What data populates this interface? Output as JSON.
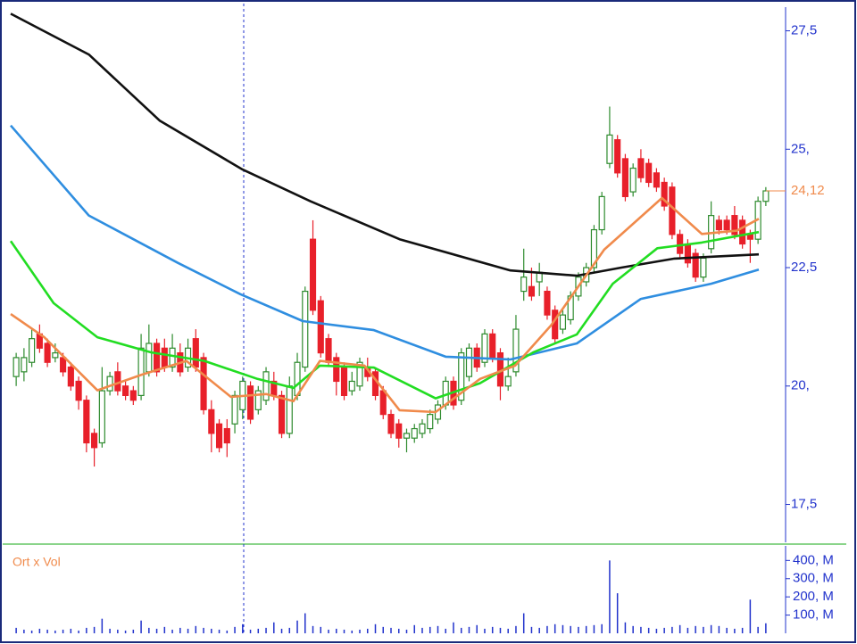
{
  "chart_data": [
    {
      "type": "candlestick",
      "xlim": [
        -0.7,
        98.3
      ],
      "ylim": [
        16.7,
        28.0
      ],
      "yticks": [
        {
          "value": 27.5,
          "label": "27,5"
        },
        {
          "value": 25,
          "label": "25,"
        },
        {
          "value": 22.5,
          "label": "22,5"
        },
        {
          "value": 20,
          "label": "20,"
        },
        {
          "value": 17.5,
          "label": "17,5"
        }
      ],
      "up_color": "#2e8b2e",
      "down_color": "#e8202a",
      "open": [
        20.2,
        20.3,
        20.5,
        21.1,
        20.9,
        20.6,
        20.6,
        20.4,
        20.1,
        19.7,
        19.0,
        18.8,
        19.9,
        20.3,
        20.0,
        19.9,
        19.8,
        20.3,
        20.9,
        20.8,
        20.4,
        20.7,
        20.4,
        21.0,
        20.6,
        19.5,
        19.2,
        19.1,
        19.2,
        19.5,
        20.0,
        19.5,
        19.7,
        20.1,
        19.8,
        19.0,
        19.8,
        20.4,
        23.1,
        21.8,
        21.0,
        20.6,
        20.4,
        19.9,
        20.0,
        20.4,
        20.3,
        19.9,
        19.4,
        19.2,
        18.9,
        18.9,
        19.0,
        19.1,
        19.3,
        19.6,
        20.1,
        19.7,
        20.2,
        20.8,
        20.5,
        21.1,
        20.7,
        20.0,
        20.3,
        22.0,
        22.1,
        22.2,
        22.0,
        21.6,
        21.2,
        21.4,
        21.9,
        22.2,
        22.5,
        23.3,
        24.7,
        25.2,
        24.8,
        24.1,
        24.8,
        24.7,
        24.5,
        24.3,
        24.2,
        23.2,
        23.0,
        22.8,
        22.3,
        22.9,
        23.5,
        23.5,
        23.6,
        23.5,
        23.2,
        23.1,
        23.9
      ],
      "high": [
        20.7,
        20.8,
        21.2,
        21.3,
        21.0,
        20.9,
        20.7,
        20.5,
        20.2,
        19.8,
        19.1,
        20.4,
        20.3,
        20.5,
        20.1,
        20.0,
        21.1,
        21.3,
        21.0,
        21.0,
        21.1,
        20.9,
        21.0,
        21.2,
        20.7,
        19.7,
        19.3,
        19.3,
        19.9,
        20.2,
        20.1,
        20.0,
        20.4,
        20.3,
        19.9,
        20.2,
        20.7,
        22.1,
        23.5,
        21.9,
        21.1,
        20.7,
        20.5,
        20.3,
        20.6,
        20.6,
        20.4,
        20.0,
        19.5,
        19.3,
        19.1,
        19.2,
        19.3,
        19.5,
        19.7,
        20.2,
        20.2,
        20.8,
        20.9,
        20.9,
        21.2,
        21.2,
        20.8,
        20.6,
        21.5,
        22.9,
        22.5,
        22.6,
        22.1,
        21.7,
        21.6,
        22.0,
        22.4,
        22.6,
        23.4,
        24.1,
        25.9,
        25.3,
        24.9,
        24.7,
        25.0,
        24.8,
        24.6,
        24.4,
        24.3,
        23.3,
        23.1,
        22.9,
        22.8,
        23.9,
        23.6,
        23.6,
        23.8,
        23.6,
        23.3,
        24.0,
        24.2
      ],
      "low": [
        20.0,
        20.1,
        20.4,
        20.7,
        20.4,
        20.5,
        20.2,
        19.9,
        19.5,
        18.6,
        18.3,
        18.7,
        19.8,
        19.8,
        19.7,
        19.6,
        19.7,
        20.2,
        20.2,
        20.3,
        20.3,
        20.2,
        20.3,
        20.3,
        19.4,
        18.6,
        18.6,
        18.5,
        19.0,
        19.3,
        19.2,
        19.4,
        19.6,
        19.7,
        18.9,
        18.9,
        19.7,
        20.3,
        21.5,
        20.6,
        20.4,
        19.8,
        19.7,
        19.8,
        19.9,
        20.1,
        19.7,
        19.3,
        18.9,
        18.7,
        18.6,
        18.8,
        18.9,
        19.0,
        19.2,
        19.5,
        19.5,
        19.6,
        20.1,
        20.3,
        20.4,
        20.5,
        19.7,
        19.9,
        20.2,
        21.8,
        21.8,
        21.9,
        21.4,
        20.9,
        21.1,
        21.3,
        21.8,
        22.1,
        22.4,
        23.2,
        24.6,
        24.4,
        23.9,
        24.0,
        24.3,
        24.2,
        24.1,
        23.7,
        23.1,
        22.7,
        22.5,
        22.2,
        22.2,
        22.8,
        23.2,
        23.2,
        23.1,
        22.9,
        22.6,
        23.0,
        23.8
      ],
      "close": [
        20.6,
        20.6,
        21.0,
        20.8,
        20.5,
        20.7,
        20.3,
        20.0,
        19.7,
        18.8,
        18.7,
        19.9,
        20.2,
        19.9,
        19.8,
        19.7,
        20.8,
        20.9,
        20.3,
        20.4,
        20.8,
        20.3,
        20.8,
        20.4,
        19.5,
        19.0,
        18.7,
        18.8,
        19.8,
        20.1,
        19.3,
        19.9,
        20.3,
        19.8,
        19.0,
        20.0,
        20.5,
        22.0,
        21.6,
        20.7,
        20.5,
        20.1,
        19.8,
        20.1,
        20.5,
        20.2,
        19.8,
        19.4,
        19.0,
        18.9,
        19.0,
        19.1,
        19.2,
        19.4,
        19.6,
        20.1,
        19.6,
        20.7,
        20.8,
        20.4,
        21.1,
        20.6,
        20.0,
        20.2,
        21.2,
        22.3,
        21.9,
        22.4,
        21.5,
        21.0,
        21.5,
        21.9,
        22.3,
        22.5,
        23.3,
        24.0,
        25.3,
        24.5,
        24.0,
        24.6,
        24.4,
        24.3,
        24.2,
        23.8,
        23.2,
        22.8,
        22.6,
        22.3,
        22.7,
        23.6,
        23.3,
        23.3,
        23.2,
        23.0,
        23.1,
        23.9,
        24.12
      ],
      "series": [
        {
          "color": "#111111",
          "x": [
            -0.7,
            9.3,
            18.4,
            29,
            37.7,
            49.1,
            63.3,
            71.8,
            77.5,
            84.3,
            95.1
          ],
          "values": [
            27.86,
            27.0,
            25.6,
            24.57,
            23.9,
            23.1,
            22.44,
            22.33,
            22.5,
            22.69,
            22.78
          ]
        },
        {
          "color": "#2f8ee0",
          "x": [
            -0.7,
            9.3,
            20.7,
            28.7,
            36.7,
            45.8,
            55,
            63.3,
            71.8,
            80,
            89,
            95.1
          ],
          "values": [
            25.5,
            23.6,
            22.6,
            21.94,
            21.37,
            21.18,
            20.62,
            20.56,
            20.9,
            21.84,
            22.16,
            22.46
          ]
        },
        {
          "color": "#22dd22",
          "x": [
            -0.7,
            4.8,
            10.4,
            17.3,
            24.1,
            30.9,
            35.5,
            38.9,
            45.8,
            53.7,
            59.4,
            66.2,
            71.8,
            76.4,
            82.1,
            87.8,
            95.1
          ],
          "values": [
            23.06,
            21.75,
            21.03,
            20.71,
            20.53,
            20.15,
            19.96,
            20.43,
            20.39,
            19.74,
            20.06,
            20.71,
            21.09,
            22.16,
            22.91,
            23.03,
            23.25
          ]
        },
        {
          "color": "#f08a4b",
          "x": [
            -0.7,
            3.6,
            10.4,
            16.1,
            21.8,
            27.5,
            32,
            35.5,
            38.9,
            44.6,
            49.1,
            53.7,
            59.4,
            63.9,
            68.5,
            75.3,
            82.7,
            87.8,
            92.3,
            95.1
          ],
          "values": [
            21.52,
            21.03,
            19.91,
            20.24,
            20.53,
            19.77,
            19.83,
            19.68,
            20.53,
            20.43,
            19.49,
            19.45,
            20.15,
            20.43,
            21.28,
            22.88,
            23.97,
            23.21,
            23.28,
            23.53
          ]
        }
      ],
      "last_price": {
        "value": 24.12,
        "label": "24,12",
        "color": "#f08a4b"
      }
    },
    {
      "type": "bar",
      "title": "Ort x Vol",
      "xlim": [
        -0.7,
        98.3
      ],
      "ylim": [
        0,
        480
      ],
      "yticks": [
        {
          "value": 400,
          "label": "400, M"
        },
        {
          "value": 300,
          "label": "300, M"
        },
        {
          "value": 200,
          "label": "200, M"
        },
        {
          "value": 100,
          "label": "100, M"
        }
      ],
      "color": "#2233cc",
      "values": [
        30,
        20,
        15,
        25,
        20,
        15,
        20,
        25,
        15,
        30,
        35,
        80,
        25,
        20,
        15,
        20,
        70,
        30,
        25,
        35,
        20,
        30,
        25,
        40,
        30,
        25,
        20,
        15,
        35,
        50,
        20,
        25,
        30,
        60,
        25,
        30,
        70,
        110,
        40,
        35,
        20,
        25,
        20,
        15,
        20,
        25,
        50,
        35,
        30,
        25,
        20,
        45,
        30,
        35,
        40,
        25,
        60,
        30,
        35,
        45,
        25,
        35,
        30,
        25,
        40,
        110,
        35,
        30,
        40,
        50,
        45,
        40,
        35,
        40,
        45,
        50,
        400,
        220,
        60,
        40,
        35,
        30,
        25,
        30,
        35,
        45,
        30,
        40,
        35,
        45,
        40,
        30,
        25,
        30,
        185,
        35,
        55
      ]
    }
  ]
}
